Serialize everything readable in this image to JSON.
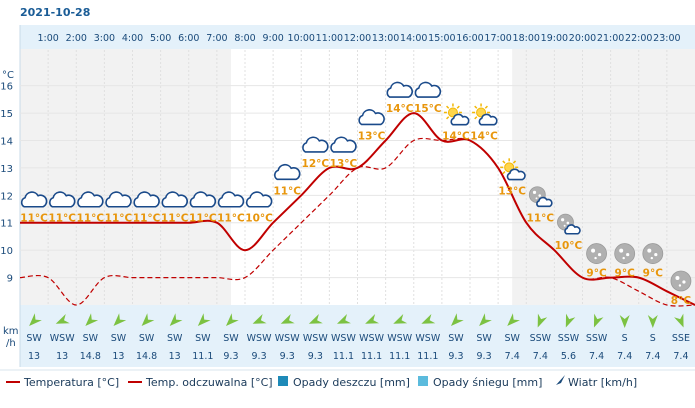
{
  "date": "2021-10-28",
  "hours": [
    "1:00",
    "2:00",
    "3:00",
    "4:00",
    "5:00",
    "6:00",
    "7:00",
    "8:00",
    "9:00",
    "10:00",
    "11:00",
    "12:00",
    "13:00",
    "14:00",
    "15:00",
    "16:00",
    "17:00",
    "18:00",
    "19:00",
    "20:00",
    "21:00",
    "22:00",
    "23:00"
  ],
  "y_unit": "°C",
  "wind_unit_line1": "km",
  "wind_unit_line2": "/h",
  "chart_data": {
    "type": "line",
    "x": [
      0,
      1,
      2,
      3,
      4,
      5,
      6,
      7,
      8,
      9,
      10,
      11,
      12,
      13,
      14,
      15,
      16,
      17,
      18,
      19,
      20,
      21,
      22,
      23,
      24
    ],
    "ylim": [
      8,
      17.3
    ],
    "yticks": [
      9,
      10,
      11,
      12,
      13,
      14,
      15,
      16
    ],
    "series": [
      {
        "name": "Temperatura [°C]",
        "color": "#c00000",
        "style": "solid",
        "values": [
          11,
          11,
          11,
          11,
          11,
          11,
          11,
          11,
          10,
          11,
          12,
          13,
          13,
          14,
          15,
          14,
          14,
          13,
          11,
          10,
          9,
          9,
          9,
          8.5,
          8
        ]
      },
      {
        "name": "Temp. odczuwalna [°C]",
        "color": "#c00000",
        "style": "dashed",
        "values": [
          9,
          9,
          8,
          9,
          9,
          9,
          9,
          9,
          9,
          10,
          11,
          12,
          13,
          13,
          14,
          14,
          14,
          13,
          11,
          10,
          9,
          9,
          8.5,
          8,
          8
        ]
      }
    ]
  },
  "forecast": [
    {
      "label": "11°C",
      "icon": "cloud-icon",
      "wind_dir": "SW",
      "wind_speed": "13"
    },
    {
      "label": "11°C",
      "icon": "cloud-icon",
      "wind_dir": "WSW",
      "wind_speed": "13"
    },
    {
      "label": "11°C",
      "icon": "cloud-icon",
      "wind_dir": "SW",
      "wind_speed": "14.8"
    },
    {
      "label": "11°C",
      "icon": "cloud-icon",
      "wind_dir": "SW",
      "wind_speed": "13"
    },
    {
      "label": "11°C",
      "icon": "cloud-icon",
      "wind_dir": "SW",
      "wind_speed": "14.8"
    },
    {
      "label": "11°C",
      "icon": "cloud-icon",
      "wind_dir": "SW",
      "wind_speed": "13"
    },
    {
      "label": "11°C",
      "icon": "cloud-icon",
      "wind_dir": "SW",
      "wind_speed": "11.1"
    },
    {
      "label": "11°C",
      "icon": "cloud-icon",
      "wind_dir": "SW",
      "wind_speed": "9.3"
    },
    {
      "label": "10°C",
      "icon": "cloud-icon",
      "wind_dir": "WSW",
      "wind_speed": "9.3"
    },
    {
      "label": "11°C",
      "icon": "cloud-icon",
      "wind_dir": "WSW",
      "wind_speed": "9.3"
    },
    {
      "label": "12°C",
      "icon": "cloud-icon",
      "wind_dir": "WSW",
      "wind_speed": "9.3"
    },
    {
      "label": "13°C",
      "icon": "cloud-icon",
      "wind_dir": "WSW",
      "wind_speed": "11.1"
    },
    {
      "label": "13°C",
      "icon": "cloud-icon",
      "wind_dir": "WSW",
      "wind_speed": "11.1"
    },
    {
      "label": "14°C",
      "icon": "cloud-icon",
      "wind_dir": "WSW",
      "wind_speed": "11.1"
    },
    {
      "label": "15°C",
      "icon": "cloud-icon",
      "wind_dir": "WSW",
      "wind_speed": "11.1"
    },
    {
      "label": "14°C",
      "icon": "sun-cloud-icon",
      "wind_dir": "SW",
      "wind_speed": "9.3"
    },
    {
      "label": "14°C",
      "icon": "sun-cloud-icon",
      "wind_dir": "SW",
      "wind_speed": "9.3"
    },
    {
      "label": "13°C",
      "icon": "sun-cloud-icon",
      "wind_dir": "SW",
      "wind_speed": "7.4"
    },
    {
      "label": "11°C",
      "icon": "moon-cloud-icon",
      "wind_dir": "SSW",
      "wind_speed": "7.4"
    },
    {
      "label": "10°C",
      "icon": "moon-cloud-icon",
      "wind_dir": "SSW",
      "wind_speed": "5.6"
    },
    {
      "label": "9°C",
      "icon": "moon-icon",
      "wind_dir": "SSW",
      "wind_speed": "7.4"
    },
    {
      "label": "9°C",
      "icon": "moon-icon",
      "wind_dir": "S",
      "wind_speed": "7.4"
    },
    {
      "label": "9°C",
      "icon": "moon-icon",
      "wind_dir": "S",
      "wind_speed": "7.4"
    },
    {
      "label": "8°C",
      "icon": "moon-icon",
      "wind_dir": "SSE",
      "wind_speed": "7.4"
    }
  ],
  "wind_dir_degrees": {
    "S": 0,
    "SSW": 22,
    "SW": 45,
    "WSW": 67,
    "SSE": -22
  },
  "legend": [
    {
      "label": "Temperatura [°C]",
      "type": "line",
      "color": "#c00000"
    },
    {
      "label": "Temp. odczuwalna [°C]",
      "type": "line",
      "color": "#c00000"
    },
    {
      "label": "Opady deszczu [mm]",
      "type": "box",
      "color": "#1e8ab8"
    },
    {
      "label": "Opady śniegu [mm]",
      "type": "box",
      "color": "#5bbbdd"
    },
    {
      "label": "Wiatr [km/h]",
      "type": "arrow",
      "color": "#1a4a7a"
    }
  ],
  "colors": {
    "night_bg": "#f2f2f2",
    "day_bg": "#ffffff",
    "hour_bar": "#e4f1fa",
    "wind_bg": "#e4f1fa",
    "wind_arrow": "#7cc242",
    "axis_text": "#1a4a7a",
    "cloud_fill": "#ffffff",
    "cloud_stroke": "#1a4a8a",
    "label_color": "#e8960c"
  }
}
